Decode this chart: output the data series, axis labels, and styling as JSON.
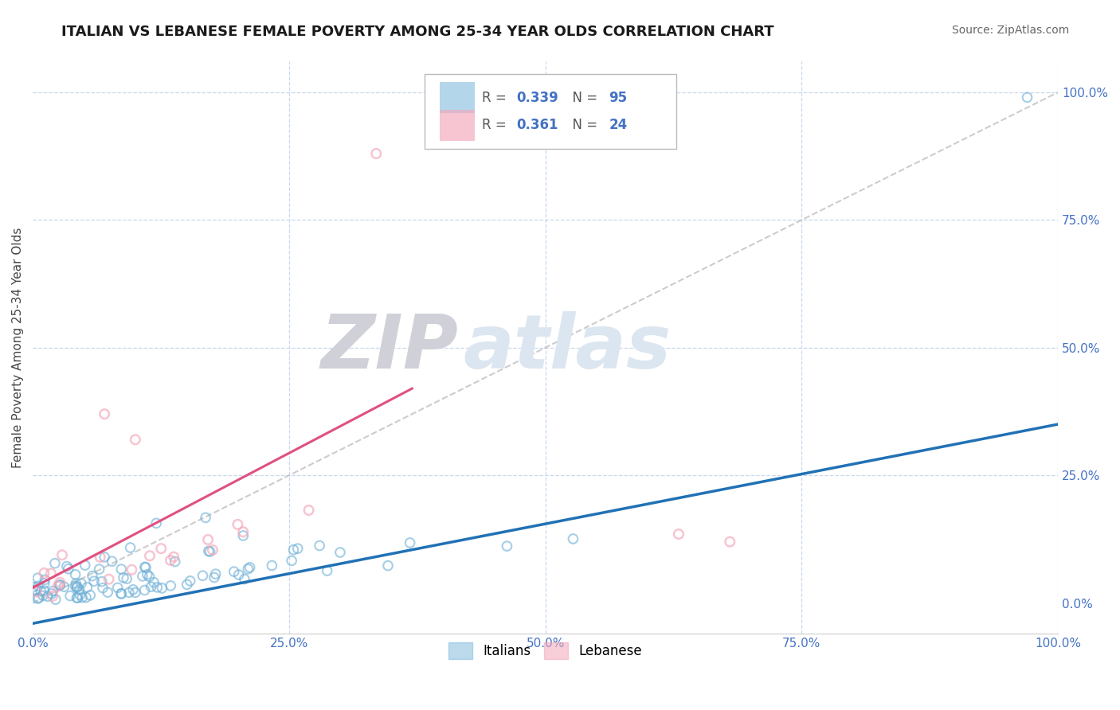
{
  "title": "ITALIAN VS LEBANESE FEMALE POVERTY AMONG 25-34 YEAR OLDS CORRELATION CHART",
  "source": "Source: ZipAtlas.com",
  "ylabel": "Female Poverty Among 25-34 Year Olds",
  "italian_R": 0.339,
  "italian_N": 95,
  "lebanese_R": 0.361,
  "lebanese_N": 24,
  "italian_color": "#6baed6",
  "lebanese_color": "#f4a7b9",
  "italian_trend_color": "#2171b5",
  "lebanese_trend_color": "#e05080",
  "ref_line_color": "#c0c0c0",
  "grid_color": "#c8d8ee",
  "background_color": "#ffffff",
  "title_color": "#1a1a1a",
  "axis_tick_color": "#4472c4",
  "legend_label_color": "#555555",
  "legend_value_color": "#4472c4",
  "watermark_color": "#dce6f0",
  "watermark_text": "ZIPatlas",
  "xlim": [
    0,
    1
  ],
  "ylim": [
    -0.06,
    1.06
  ],
  "xticks": [
    0.0,
    0.25,
    0.5,
    0.75,
    1.0
  ],
  "xtick_labels": [
    "0.0%",
    "25.0%",
    "50.0%",
    "75.0%",
    "100.0%"
  ],
  "yticks": [
    0.0,
    0.25,
    0.5,
    0.75,
    1.0
  ],
  "ytick_labels": [
    "0.0%",
    "25.0%",
    "50.0%",
    "75.0%",
    "100.0%"
  ]
}
